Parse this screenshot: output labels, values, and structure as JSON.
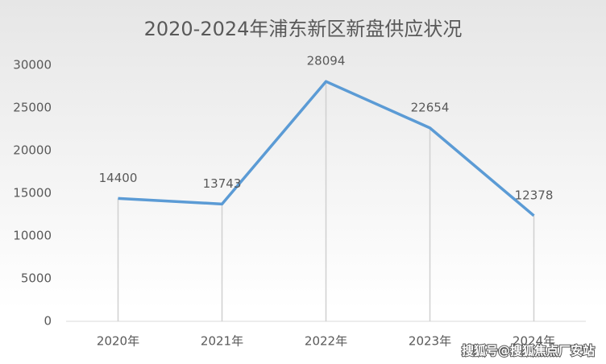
{
  "chart_data": {
    "type": "line",
    "title": "2020-2024年浦东新区新盘供应状况",
    "categories": [
      "2020年",
      "2021年",
      "2022年",
      "2023年",
      "2024年"
    ],
    "series": [
      {
        "name": "新盘供应",
        "color": "#5b9bd5",
        "values": [
          14400,
          13743,
          28094,
          22654,
          12378
        ]
      }
    ],
    "ylim": [
      0,
      30000
    ],
    "yticks": [
      0,
      5000,
      10000,
      15000,
      20000,
      25000,
      30000
    ],
    "drop_lines": true,
    "data_labels": true,
    "legend": false
  },
  "watermark": "搜狐号@搜狐焦点厂安站"
}
